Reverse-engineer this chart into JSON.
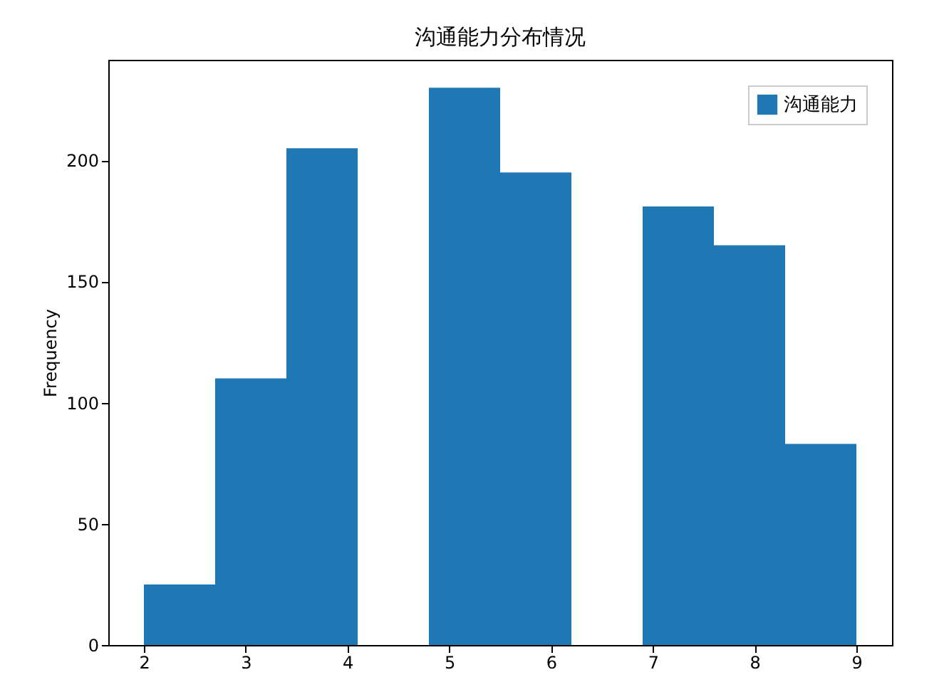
{
  "chart_data": {
    "type": "histogram",
    "title": "沟通能力分布情况",
    "ylabel": "Frequency",
    "bins": [
      2,
      2.7,
      3.4,
      4.1,
      4.8,
      5.5,
      6.2,
      6.9,
      7.6,
      8.3,
      9
    ],
    "series": [
      {
        "name": "沟通能力",
        "color": "#1f77b4",
        "values": [
          25,
          110,
          205,
          0,
          230,
          195,
          0,
          181,
          165,
          83
        ]
      }
    ],
    "xlim": [
      1.65,
      9.35
    ],
    "ylim": [
      0,
      241.5
    ],
    "xticks": [
      2,
      3,
      4,
      5,
      6,
      7,
      8,
      9
    ],
    "yticks": [
      0,
      50,
      100,
      150,
      200
    ],
    "grid": false,
    "legend": "top right"
  }
}
